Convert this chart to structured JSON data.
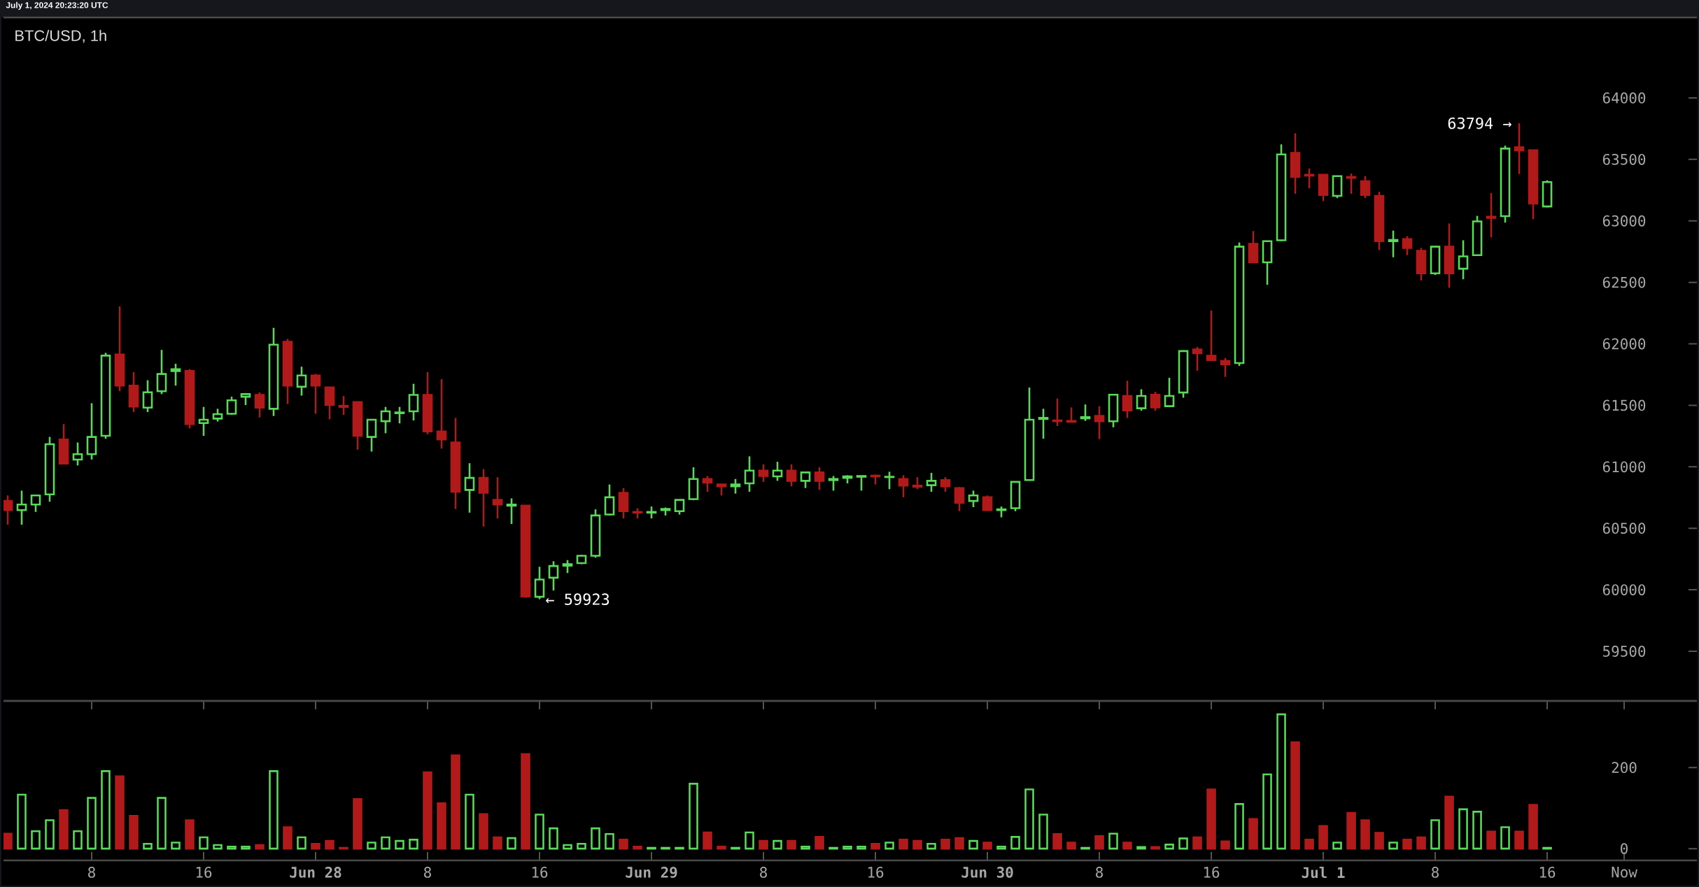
{
  "chart_data": [
    {
      "type": "candlestick",
      "title": "BTC/USD, 1h",
      "annotations": [
        "July 1, 2024 20:23:20 UTC",
        {
          "text": "63794 →",
          "x": "2024-07-01T14:00",
          "y": 63794
        },
        {
          "text": "← 59923",
          "x": "2024-06-28T16:00",
          "y": 59923
        }
      ],
      "x": [
        "2024-06-27T02:00",
        "2024-06-27T03:00",
        "2024-06-27T04:00",
        "2024-06-27T05:00",
        "2024-06-27T06:00",
        "2024-06-27T07:00",
        "2024-06-27T08:00",
        "2024-06-27T09:00",
        "2024-06-27T10:00",
        "2024-06-27T11:00",
        "2024-06-27T12:00",
        "2024-06-27T13:00",
        "2024-06-27T14:00",
        "2024-06-27T15:00",
        "2024-06-27T16:00",
        "2024-06-27T17:00",
        "2024-06-27T18:00",
        "2024-06-27T19:00",
        "2024-06-27T20:00",
        "2024-06-27T21:00",
        "2024-06-27T22:00",
        "2024-06-27T23:00",
        "2024-06-28T00:00",
        "2024-06-28T01:00",
        "2024-06-28T02:00",
        "2024-06-28T03:00",
        "2024-06-28T04:00",
        "2024-06-28T05:00",
        "2024-06-28T06:00",
        "2024-06-28T07:00",
        "2024-06-28T08:00",
        "2024-06-28T09:00",
        "2024-06-28T10:00",
        "2024-06-28T11:00",
        "2024-06-28T12:00",
        "2024-06-28T13:00",
        "2024-06-28T14:00",
        "2024-06-28T15:00",
        "2024-06-28T16:00",
        "2024-06-28T17:00",
        "2024-06-28T18:00",
        "2024-06-28T19:00",
        "2024-06-28T20:00",
        "2024-06-28T21:00",
        "2024-06-28T22:00",
        "2024-06-28T23:00",
        "2024-06-29T00:00",
        "2024-06-29T01:00",
        "2024-06-29T02:00",
        "2024-06-29T03:00",
        "2024-06-29T04:00",
        "2024-06-29T05:00",
        "2024-06-29T06:00",
        "2024-06-29T07:00",
        "2024-06-29T08:00",
        "2024-06-29T09:00",
        "2024-06-29T10:00",
        "2024-06-29T11:00",
        "2024-06-29T12:00",
        "2024-06-29T13:00",
        "2024-06-29T14:00",
        "2024-06-29T15:00",
        "2024-06-29T16:00",
        "2024-06-29T17:00",
        "2024-06-29T18:00",
        "2024-06-29T19:00",
        "2024-06-29T20:00",
        "2024-06-29T21:00",
        "2024-06-29T22:00",
        "2024-06-29T23:00",
        "2024-06-30T00:00",
        "2024-06-30T01:00",
        "2024-06-30T02:00",
        "2024-06-30T03:00",
        "2024-06-30T04:00",
        "2024-06-30T05:00",
        "2024-06-30T06:00",
        "2024-06-30T07:00",
        "2024-06-30T08:00",
        "2024-06-30T09:00",
        "2024-06-30T10:00",
        "2024-06-30T11:00",
        "2024-06-30T12:00",
        "2024-06-30T13:00",
        "2024-06-30T14:00",
        "2024-06-30T15:00",
        "2024-06-30T16:00",
        "2024-06-30T17:00",
        "2024-06-30T18:00",
        "2024-06-30T19:00",
        "2024-06-30T20:00",
        "2024-06-30T21:00",
        "2024-06-30T22:00",
        "2024-06-30T23:00",
        "2024-07-01T00:00",
        "2024-07-01T01:00",
        "2024-07-01T02:00",
        "2024-07-01T03:00",
        "2024-07-01T04:00",
        "2024-07-01T05:00",
        "2024-07-01T06:00",
        "2024-07-01T07:00",
        "2024-07-01T08:00",
        "2024-07-01T09:00",
        "2024-07-01T10:00",
        "2024-07-01T11:00",
        "2024-07-01T12:00",
        "2024-07-01T13:00",
        "2024-07-01T14:00",
        "2024-07-01T15:00",
        "2024-07-01T16:00"
      ],
      "ohlc": [
        [
          60722,
          60767,
          60529,
          60648
        ],
        [
          60648,
          60806,
          60529,
          60693
        ],
        [
          60693,
          60767,
          60633,
          60767
        ],
        [
          60776,
          61243,
          60716,
          61184
        ],
        [
          61222,
          61347,
          61026,
          61026
        ],
        [
          61059,
          61198,
          61011,
          61103
        ],
        [
          61103,
          61517,
          61059,
          61243
        ],
        [
          61252,
          61927,
          61228,
          61904
        ],
        [
          61913,
          62305,
          61615,
          61660
        ],
        [
          61660,
          61770,
          61445,
          61490
        ],
        [
          61481,
          61704,
          61445,
          61606
        ],
        [
          61615,
          61951,
          61591,
          61755
        ],
        [
          61779,
          61838,
          61660,
          61794
        ],
        [
          61779,
          61794,
          61312,
          61347
        ],
        [
          61356,
          61487,
          61252,
          61383
        ],
        [
          61392,
          61472,
          61368,
          61428
        ],
        [
          61431,
          61570,
          61422,
          61541
        ],
        [
          61570,
          61600,
          61502,
          61591
        ],
        [
          61585,
          61606,
          61401,
          61481
        ],
        [
          61472,
          62130,
          61413,
          61993
        ],
        [
          62017,
          62040,
          61511,
          61660
        ],
        [
          61651,
          61814,
          61579,
          61743
        ],
        [
          61743,
          61755,
          61431,
          61660
        ],
        [
          61645,
          61645,
          61386,
          61502
        ],
        [
          61496,
          61576,
          61422,
          61487
        ],
        [
          61526,
          61526,
          61139,
          61252
        ],
        [
          61243,
          61383,
          61124,
          61383
        ],
        [
          61371,
          61487,
          61273,
          61451
        ],
        [
          61436,
          61487,
          61353,
          61442
        ],
        [
          61451,
          61675,
          61377,
          61585
        ],
        [
          61585,
          61770,
          61264,
          61288
        ],
        [
          61288,
          61713,
          61148,
          61222
        ],
        [
          61198,
          61398,
          60657,
          60797
        ],
        [
          60812,
          61029,
          60627,
          60910
        ],
        [
          60910,
          60981,
          60514,
          60788
        ],
        [
          60731,
          60916,
          60580,
          60693
        ],
        [
          60684,
          60743,
          60535,
          60693
        ],
        [
          60684,
          60684,
          59935,
          59945
        ],
        [
          59943,
          60187,
          59923,
          60083
        ],
        [
          60098,
          60232,
          59994,
          60193
        ],
        [
          60196,
          60241,
          60136,
          60208
        ],
        [
          60217,
          60285,
          60208,
          60276
        ],
        [
          60276,
          60654,
          60261,
          60604
        ],
        [
          60612,
          60856,
          60604,
          60752
        ],
        [
          60788,
          60827,
          60580,
          60639
        ],
        [
          60633,
          60663,
          60580,
          60627
        ],
        [
          60627,
          60677,
          60580,
          60633
        ],
        [
          60648,
          60669,
          60604,
          60657
        ],
        [
          60639,
          60731,
          60612,
          60731
        ],
        [
          60737,
          60996,
          60728,
          60901
        ],
        [
          60901,
          60925,
          60797,
          60871
        ],
        [
          60856,
          60856,
          60767,
          60841
        ],
        [
          60841,
          60901,
          60782,
          60856
        ],
        [
          60865,
          61085,
          60797,
          60969
        ],
        [
          60969,
          61020,
          60877,
          60925
        ],
        [
          60922,
          61041,
          60886,
          60969
        ],
        [
          60969,
          61020,
          60841,
          60886
        ],
        [
          60886,
          60954,
          60827,
          60954
        ],
        [
          60954,
          60996,
          60812,
          60886
        ],
        [
          60892,
          60925,
          60806,
          60901
        ],
        [
          60910,
          60931,
          60865,
          60922
        ],
        [
          60919,
          60925,
          60806,
          60925
        ],
        [
          60928,
          60937,
          60856,
          60922
        ],
        [
          60916,
          60960,
          60818,
          60919
        ],
        [
          60901,
          60931,
          60752,
          60847
        ],
        [
          60847,
          60916,
          60818,
          60838
        ],
        [
          60850,
          60951,
          60797,
          60886
        ],
        [
          60892,
          60916,
          60797,
          60841
        ],
        [
          60827,
          60836,
          60639,
          60708
        ],
        [
          60722,
          60806,
          60672,
          60767
        ],
        [
          60752,
          60767,
          60648,
          60648
        ],
        [
          60648,
          60677,
          60589,
          60654
        ],
        [
          60663,
          60877,
          60639,
          60877
        ],
        [
          60892,
          61645,
          60892,
          61383
        ],
        [
          61389,
          61472,
          61228,
          61398
        ],
        [
          61377,
          61555,
          61332,
          61371
        ],
        [
          61373,
          61483,
          61363,
          61366
        ],
        [
          61394,
          61507,
          61373,
          61404
        ],
        [
          61414,
          61493,
          61225,
          61370
        ],
        [
          61370,
          61586,
          61321,
          61586
        ],
        [
          61576,
          61700,
          61397,
          61459
        ],
        [
          61476,
          61631,
          61456,
          61576
        ],
        [
          61586,
          61610,
          61456,
          61483
        ],
        [
          61493,
          61724,
          61493,
          61576
        ],
        [
          61604,
          61947,
          61562,
          61941
        ],
        [
          61954,
          61975,
          61782,
          61923
        ],
        [
          61903,
          62271,
          61868,
          61868
        ],
        [
          61861,
          61885,
          61731,
          61834
        ],
        [
          61844,
          62824,
          61820,
          62790
        ],
        [
          62814,
          62917,
          62663,
          62663
        ],
        [
          62663,
          62835,
          62480,
          62835
        ],
        [
          62842,
          63622,
          62835,
          63540
        ],
        [
          63553,
          63712,
          63220,
          63357
        ],
        [
          63375,
          63426,
          63265,
          63368
        ],
        [
          63375,
          63381,
          63161,
          63210
        ],
        [
          63203,
          63368,
          63185,
          63364
        ],
        [
          63357,
          63385,
          63220,
          63350
        ],
        [
          63323,
          63364,
          63185,
          63210
        ],
        [
          63203,
          63237,
          62762,
          62835
        ],
        [
          62835,
          62921,
          62704,
          62845
        ],
        [
          62852,
          62876,
          62721,
          62780
        ],
        [
          62756,
          62780,
          62515,
          62573
        ],
        [
          62573,
          62790,
          62560,
          62790
        ],
        [
          62790,
          62979,
          62456,
          62573
        ],
        [
          62611,
          62842,
          62525,
          62711
        ],
        [
          62721,
          63041,
          62721,
          62996
        ],
        [
          63034,
          63227,
          62866,
          63024
        ],
        [
          63038,
          63612,
          62986,
          63588
        ],
        [
          63598,
          63794,
          63381,
          63574
        ],
        [
          63574,
          63574,
          63013,
          63141
        ],
        [
          63117,
          63330,
          63110,
          63316
        ]
      ],
      "colors": [
        "#b11a1a",
        "#5bd75b",
        "#5bd75b",
        "#5bd75b",
        "#b11a1a",
        "#5bd75b",
        "#5bd75b",
        "#5bd75b",
        "#b11a1a",
        "#b11a1a",
        "#5bd75b",
        "#5bd75b",
        "#5bd75b",
        "#b11a1a",
        "#5bd75b",
        "#5bd75b",
        "#5bd75b",
        "#5bd75b",
        "#b11a1a",
        "#5bd75b",
        "#b11a1a",
        "#5bd75b",
        "#b11a1a",
        "#b11a1a",
        "#b11a1a",
        "#b11a1a",
        "#5bd75b",
        "#5bd75b",
        "#5bd75b",
        "#5bd75b",
        "#b11a1a",
        "#b11a1a",
        "#b11a1a",
        "#5bd75b",
        "#b11a1a",
        "#b11a1a",
        "#5bd75b",
        "#b11a1a",
        "#5bd75b",
        "#5bd75b",
        "#5bd75b",
        "#5bd75b",
        "#5bd75b",
        "#5bd75b",
        "#b11a1a",
        "#b11a1a",
        "#5bd75b",
        "#5bd75b",
        "#5bd75b",
        "#5bd75b",
        "#b11a1a",
        "#b11a1a",
        "#5bd75b",
        "#5bd75b",
        "#b11a1a",
        "#5bd75b",
        "#b11a1a",
        "#5bd75b",
        "#b11a1a",
        "#5bd75b",
        "#5bd75b",
        "#5bd75b",
        "#b11a1a",
        "#5bd75b",
        "#b11a1a",
        "#b11a1a",
        "#5bd75b",
        "#b11a1a",
        "#b11a1a",
        "#5bd75b",
        "#b11a1a",
        "#5bd75b",
        "#5bd75b",
        "#5bd75b",
        "#5bd75b",
        "#b11a1a",
        "#b11a1a",
        "#5bd75b",
        "#b11a1a",
        "#5bd75b",
        "#b11a1a",
        "#5bd75b",
        "#b11a1a",
        "#5bd75b",
        "#5bd75b",
        "#b11a1a",
        "#b11a1a",
        "#b11a1a",
        "#5bd75b",
        "#b11a1a",
        "#5bd75b",
        "#5bd75b",
        "#b11a1a",
        "#b11a1a",
        "#b11a1a",
        "#5bd75b",
        "#b11a1a",
        "#b11a1a",
        "#b11a1a",
        "#5bd75b",
        "#b11a1a",
        "#b11a1a",
        "#5bd75b",
        "#b11a1a",
        "#5bd75b",
        "#5bd75b",
        "#b11a1a",
        "#5bd75b",
        "#b11a1a",
        "#b11a1a",
        "#5bd75b"
      ],
      "xlim": [
        "2024-06-27T01:42",
        "2024-07-02T02:42"
      ],
      "ylim": [
        59096,
        64654
      ],
      "yticks": [
        59500,
        60000,
        60500,
        61000,
        61500,
        62000,
        62500,
        63000,
        63500,
        64000
      ],
      "tick_labels": "y"
    },
    {
      "type": "bar",
      "x": [
        "2024-06-27T02:00",
        "2024-06-27T03:00",
        "2024-06-27T04:00",
        "2024-06-27T05:00",
        "2024-06-27T06:00",
        "2024-06-27T07:00",
        "2024-06-27T08:00",
        "2024-06-27T09:00",
        "2024-06-27T10:00",
        "2024-06-27T11:00",
        "2024-06-27T12:00",
        "2024-06-27T13:00",
        "2024-06-27T14:00",
        "2024-06-27T15:00",
        "2024-06-27T16:00",
        "2024-06-27T17:00",
        "2024-06-27T18:00",
        "2024-06-27T19:00",
        "2024-06-27T20:00",
        "2024-06-27T21:00",
        "2024-06-27T22:00",
        "2024-06-27T23:00",
        "2024-06-28T00:00",
        "2024-06-28T01:00",
        "2024-06-28T02:00",
        "2024-06-28T03:00",
        "2024-06-28T04:00",
        "2024-06-28T05:00",
        "2024-06-28T06:00",
        "2024-06-28T07:00",
        "2024-06-28T08:00",
        "2024-06-28T09:00",
        "2024-06-28T10:00",
        "2024-06-28T11:00",
        "2024-06-28T12:00",
        "2024-06-28T13:00",
        "2024-06-28T14:00",
        "2024-06-28T15:00",
        "2024-06-28T16:00",
        "2024-06-28T17:00",
        "2024-06-28T18:00",
        "2024-06-28T19:00",
        "2024-06-28T20:00",
        "2024-06-28T21:00",
        "2024-06-28T22:00",
        "2024-06-28T23:00",
        "2024-06-29T00:00",
        "2024-06-29T01:00",
        "2024-06-29T02:00",
        "2024-06-29T03:00",
        "2024-06-29T04:00",
        "2024-06-29T05:00",
        "2024-06-29T06:00",
        "2024-06-29T07:00",
        "2024-06-29T08:00",
        "2024-06-29T09:00",
        "2024-06-29T10:00",
        "2024-06-29T11:00",
        "2024-06-29T12:00",
        "2024-06-29T13:00",
        "2024-06-29T14:00",
        "2024-06-29T15:00",
        "2024-06-29T16:00",
        "2024-06-29T17:00",
        "2024-06-29T18:00",
        "2024-06-29T19:00",
        "2024-06-29T20:00",
        "2024-06-29T21:00",
        "2024-06-29T22:00",
        "2024-06-29T23:00",
        "2024-06-30T00:00",
        "2024-06-30T01:00",
        "2024-06-30T02:00",
        "2024-06-30T03:00",
        "2024-06-30T04:00",
        "2024-06-30T05:00",
        "2024-06-30T06:00",
        "2024-06-30T07:00",
        "2024-06-30T08:00",
        "2024-06-30T09:00",
        "2024-06-30T10:00",
        "2024-06-30T11:00",
        "2024-06-30T12:00",
        "2024-06-30T13:00",
        "2024-06-30T14:00",
        "2024-06-30T15:00",
        "2024-06-30T16:00",
        "2024-06-30T17:00",
        "2024-06-30T18:00",
        "2024-06-30T19:00",
        "2024-06-30T20:00",
        "2024-06-30T21:00",
        "2024-06-30T22:00",
        "2024-06-30T23:00",
        "2024-07-01T00:00",
        "2024-07-01T01:00",
        "2024-07-01T02:00",
        "2024-07-01T03:00",
        "2024-07-01T04:00",
        "2024-07-01T05:00",
        "2024-07-01T06:00",
        "2024-07-01T07:00",
        "2024-07-01T08:00",
        "2024-07-01T09:00",
        "2024-07-01T10:00",
        "2024-07-01T11:00",
        "2024-07-01T12:00",
        "2024-07-01T13:00",
        "2024-07-01T14:00",
        "2024-07-01T15:00",
        "2024-07-01T16:00"
      ],
      "values": [
        37,
        133,
        43,
        70,
        95,
        43,
        125,
        191,
        178,
        81,
        12,
        125,
        15,
        70,
        28,
        9,
        5,
        5,
        9,
        191,
        53,
        28,
        12,
        19,
        2,
        122,
        15,
        28,
        19,
        22,
        188,
        112,
        230,
        133,
        85,
        28,
        26,
        233,
        84,
        50,
        9,
        12,
        50,
        36,
        22,
        5,
        2,
        2,
        2,
        160,
        40,
        5,
        2,
        40,
        19,
        19,
        19,
        5,
        29,
        2,
        5,
        5,
        12,
        15,
        22,
        19,
        12,
        22,
        26,
        19,
        15,
        5,
        29,
        146,
        84,
        36,
        15,
        2,
        31,
        37,
        15,
        4,
        4,
        10,
        25,
        28,
        146,
        18,
        110,
        73,
        183,
        331,
        262,
        22,
        56,
        15,
        88,
        70,
        39,
        15,
        22,
        28,
        70,
        128,
        97,
        91,
        42,
        53,
        42,
        108,
        2
      ],
      "colors": [
        "#b11a1a",
        "#5bd75b",
        "#5bd75b",
        "#5bd75b",
        "#b11a1a",
        "#5bd75b",
        "#5bd75b",
        "#5bd75b",
        "#b11a1a",
        "#b11a1a",
        "#5bd75b",
        "#5bd75b",
        "#5bd75b",
        "#b11a1a",
        "#5bd75b",
        "#5bd75b",
        "#5bd75b",
        "#5bd75b",
        "#b11a1a",
        "#5bd75b",
        "#b11a1a",
        "#5bd75b",
        "#b11a1a",
        "#b11a1a",
        "#b11a1a",
        "#b11a1a",
        "#5bd75b",
        "#5bd75b",
        "#5bd75b",
        "#5bd75b",
        "#b11a1a",
        "#b11a1a",
        "#b11a1a",
        "#5bd75b",
        "#b11a1a",
        "#b11a1a",
        "#5bd75b",
        "#b11a1a",
        "#5bd75b",
        "#5bd75b",
        "#5bd75b",
        "#5bd75b",
        "#5bd75b",
        "#5bd75b",
        "#b11a1a",
        "#b11a1a",
        "#5bd75b",
        "#5bd75b",
        "#5bd75b",
        "#5bd75b",
        "#b11a1a",
        "#b11a1a",
        "#5bd75b",
        "#5bd75b",
        "#b11a1a",
        "#5bd75b",
        "#b11a1a",
        "#5bd75b",
        "#b11a1a",
        "#5bd75b",
        "#5bd75b",
        "#5bd75b",
        "#b11a1a",
        "#5bd75b",
        "#b11a1a",
        "#b11a1a",
        "#5bd75b",
        "#b11a1a",
        "#b11a1a",
        "#5bd75b",
        "#b11a1a",
        "#5bd75b",
        "#5bd75b",
        "#5bd75b",
        "#5bd75b",
        "#b11a1a",
        "#b11a1a",
        "#5bd75b",
        "#b11a1a",
        "#5bd75b",
        "#b11a1a",
        "#5bd75b",
        "#b11a1a",
        "#5bd75b",
        "#5bd75b",
        "#b11a1a",
        "#b11a1a",
        "#b11a1a",
        "#5bd75b",
        "#b11a1a",
        "#5bd75b",
        "#5bd75b",
        "#b11a1a",
        "#b11a1a",
        "#b11a1a",
        "#5bd75b",
        "#b11a1a",
        "#b11a1a",
        "#b11a1a",
        "#5bd75b",
        "#b11a1a",
        "#b11a1a",
        "#5bd75b",
        "#b11a1a",
        "#5bd75b",
        "#5bd75b",
        "#b11a1a",
        "#5bd75b",
        "#b11a1a",
        "#b11a1a",
        "#5bd75b"
      ],
      "xlim": [
        "2024-06-27T01:42",
        "2024-07-02T02:42"
      ],
      "ylim": [
        -29,
        364
      ],
      "xticks": [
        {
          "value": "2024-06-27T08:00",
          "label": "8"
        },
        {
          "value": "2024-06-27T16:00",
          "label": "16"
        },
        {
          "value": "2024-06-28T00:00",
          "label": "Jun 28"
        },
        {
          "value": "2024-06-28T08:00",
          "label": "8"
        },
        {
          "value": "2024-06-28T16:00",
          "label": "16"
        },
        {
          "value": "2024-06-29T00:00",
          "label": "Jun 29"
        },
        {
          "value": "2024-06-29T08:00",
          "label": "8"
        },
        {
          "value": "2024-06-29T16:00",
          "label": "16"
        },
        {
          "value": "2024-06-30T00:00",
          "label": "Jun 30"
        },
        {
          "value": "2024-06-30T08:00",
          "label": "8"
        },
        {
          "value": "2024-06-30T16:00",
          "label": "16"
        },
        {
          "value": "2024-07-01T00:00",
          "label": "Jul 1"
        },
        {
          "value": "2024-07-01T08:00",
          "label": "8"
        },
        {
          "value": "2024-07-01T16:00",
          "label": "16"
        },
        {
          "value": "2024-07-01T21:30",
          "label": "Now"
        }
      ],
      "yticks": [
        0,
        200
      ]
    }
  ]
}
